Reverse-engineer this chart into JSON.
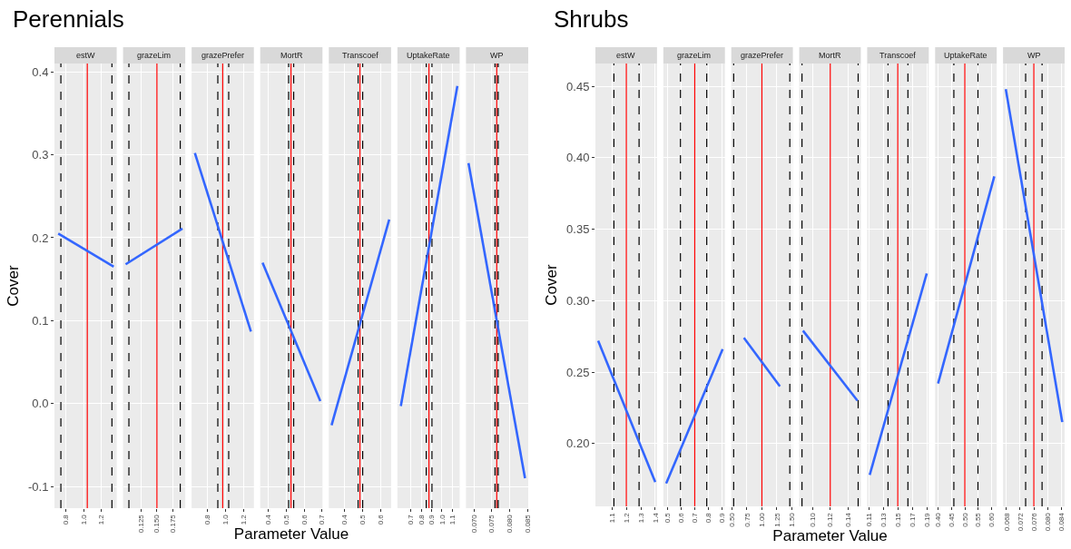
{
  "chart_data": [
    {
      "type": "line",
      "title": "estW",
      "annotations": [
        "Perennials"
      ],
      "ylabel": "Cover",
      "color": "#3366ff",
      "x": [
        0.71,
        1.34
      ],
      "values": [
        0.205,
        0.165
      ],
      "xlim": [
        0.667,
        1.374
      ],
      "xticks": [
        0.8,
        {
          "value": 1.0,
          "label": "1.0"
        },
        1.2
      ],
      "ylim": [
        -0.126,
        0.41
      ],
      "yticks": [
        -0.1,
        {
          "value": 0,
          "label": "0.0"
        },
        0.1,
        0.2,
        0.3,
        0.4
      ],
      "grid": true,
      "ref_lines": [
        {
          "axis": "x",
          "value": 1.04,
          "color": "#ff0000"
        },
        {
          "axis": "x",
          "value": 0.74,
          "color": "#000000",
          "line_style": "dashed"
        },
        {
          "axis": "x",
          "value": 1.32,
          "color": "#000000",
          "line_style": "dashed"
        }
      ]
    },
    {
      "type": "line",
      "title": "grazeLim",
      "color": "#3366ff",
      "x": [
        0.0998,
        0.191
      ],
      "values": [
        0.168,
        0.211
      ],
      "xlim": [
        0.0956,
        0.1956
      ],
      "xticks": [
        0.125,
        {
          "value": 0.15,
          "label": "0.150"
        },
        0.175
      ],
      "ylim": [
        -0.126,
        0.41
      ],
      "yticks": [
        -0.1,
        0,
        0.1,
        0.2,
        0.3,
        0.4
      ],
      "grid": true,
      "tick_labels": "x",
      "ref_lines": [
        {
          "axis": "x",
          "value": 0.15,
          "color": "#ff0000"
        },
        {
          "axis": "x",
          "value": 0.105,
          "color": "#000000",
          "line_style": "dashed"
        },
        {
          "axis": "x",
          "value": 0.1875,
          "color": "#000000",
          "line_style": "dashed"
        }
      ]
    },
    {
      "type": "line",
      "title": "grazePrefer",
      "color": "#3366ff",
      "x": [
        0.668,
        1.276
      ],
      "values": [
        0.302,
        0.087
      ],
      "xlim": [
        0.633,
        1.308
      ],
      "xticks": [
        0.8,
        {
          "value": 1.0,
          "label": "1.0"
        },
        1.2
      ],
      "ylim": [
        -0.126,
        0.41
      ],
      "yticks": [
        -0.1,
        0,
        0.1,
        0.2,
        0.3,
        0.4
      ],
      "grid": true,
      "tick_labels": "x",
      "ref_lines": [
        {
          "axis": "x",
          "value": 0.97,
          "color": "#ff0000"
        },
        {
          "axis": "x",
          "value": 0.917,
          "color": "#000000",
          "line_style": "dashed"
        },
        {
          "axis": "x",
          "value": 1.035,
          "color": "#000000",
          "line_style": "dashed"
        }
      ]
    },
    {
      "type": "line",
      "title": "MortR",
      "xlabel": "Parameter Value",
      "color": "#3366ff",
      "x": [
        0.367,
        0.69
      ],
      "values": [
        0.17,
        0.003
      ],
      "xlim": [
        0.354,
        0.702
      ],
      "xticks": [
        0.4,
        0.5,
        0.6,
        0.7
      ],
      "ylim": [
        -0.126,
        0.41
      ],
      "yticks": [
        -0.1,
        0,
        0.1,
        0.2,
        0.3,
        0.4
      ],
      "grid": true,
      "tick_labels": "x",
      "ref_lines": [
        {
          "axis": "x",
          "value": 0.526,
          "color": "#ff0000"
        },
        {
          "axis": "x",
          "value": 0.513,
          "color": "#000000",
          "line_style": "dashed"
        },
        {
          "axis": "x",
          "value": 0.541,
          "color": "#000000",
          "line_style": "dashed"
        }
      ]
    },
    {
      "type": "line",
      "title": "Transcoef",
      "color": "#3366ff",
      "x": [
        0.33,
        0.645
      ],
      "values": [
        -0.026,
        0.222
      ],
      "xlim": [
        0.315,
        0.655
      ],
      "xticks": [
        0.4,
        0.5,
        0.6
      ],
      "ylim": [
        -0.126,
        0.41
      ],
      "yticks": [
        -0.1,
        0,
        0.1,
        0.2,
        0.3,
        0.4
      ],
      "grid": true,
      "tick_labels": "x",
      "ref_lines": [
        {
          "axis": "x",
          "value": 0.485,
          "color": "#ff0000"
        },
        {
          "axis": "x",
          "value": 0.475,
          "color": "#000000",
          "line_style": "dashed"
        },
        {
          "axis": "x",
          "value": 0.5,
          "color": "#000000",
          "line_style": "dashed"
        }
      ]
    },
    {
      "type": "line",
      "title": "UptakeRate",
      "color": "#3366ff",
      "x": [
        0.603,
        1.148
      ],
      "values": [
        -0.003,
        0.383
      ],
      "xlim": [
        0.57,
        1.17
      ],
      "xticks": [
        0.7,
        0.8,
        0.9,
        {
          "value": 1.0,
          "label": "1.0"
        },
        1.1
      ],
      "ylim": [
        -0.126,
        0.41
      ],
      "yticks": [
        -0.1,
        0,
        0.1,
        0.2,
        0.3,
        0.4
      ],
      "grid": true,
      "tick_labels": "x",
      "ref_lines": [
        {
          "axis": "x",
          "value": 0.874,
          "color": "#ff0000"
        },
        {
          "axis": "x",
          "value": 0.848,
          "color": "#000000",
          "line_style": "dashed"
        },
        {
          "axis": "x",
          "value": 0.903,
          "color": "#000000",
          "line_style": "dashed"
        }
      ]
    },
    {
      "type": "line",
      "title": "WP",
      "color": "#3366ff",
      "x": [
        0.0685,
        0.0843
      ],
      "values": [
        0.29,
        -0.09
      ],
      "xlim": [
        0.0678,
        0.0852
      ],
      "xticks": [
        {
          "value": 0.07,
          "label": "0.070"
        },
        0.075,
        {
          "value": 0.08,
          "label": "0.080"
        },
        0.085
      ],
      "ylim": [
        -0.126,
        0.41
      ],
      "yticks": [
        -0.1,
        0,
        0.1,
        0.2,
        0.3,
        0.4
      ],
      "grid": true,
      "tick_labels": "x",
      "ref_lines": [
        {
          "axis": "x",
          "value": 0.0764,
          "color": "#ff0000"
        },
        {
          "axis": "x",
          "value": 0.0759,
          "color": "#000000",
          "line_style": "dashed"
        },
        {
          "axis": "x",
          "value": 0.0768,
          "color": "#000000",
          "line_style": "dashed"
        }
      ]
    },
    {
      "type": "line",
      "title": "estW",
      "annotations": [
        "Shrubs"
      ],
      "ylabel": "Cover",
      "color": "#3366ff",
      "x": [
        1.005,
        1.4
      ],
      "values": [
        0.272,
        0.173
      ],
      "xlim": [
        0.986,
        1.412
      ],
      "xticks": [
        1.1,
        1.2,
        1.3,
        1.4
      ],
      "ylim": [
        0.156,
        0.466
      ],
      "yticks": [
        {
          "value": 0.2,
          "label": "0.20"
        },
        0.25,
        {
          "value": 0.3,
          "label": "0.30"
        },
        0.35,
        {
          "value": 0.4,
          "label": "0.40"
        },
        0.45
      ],
      "grid": true,
      "ref_lines": [
        {
          "axis": "x",
          "value": 1.2,
          "color": "#ff0000"
        },
        {
          "axis": "x",
          "value": 1.114,
          "color": "#000000",
          "line_style": "dashed"
        },
        {
          "axis": "x",
          "value": 1.288,
          "color": "#000000",
          "line_style": "dashed"
        }
      ]
    },
    {
      "type": "line",
      "title": "grazeLim",
      "color": "#3366ff",
      "x": [
        0.488,
        0.907
      ],
      "values": [
        0.172,
        0.266
      ],
      "xlim": [
        0.467,
        0.924
      ],
      "xticks": [
        0.5,
        0.6,
        0.7,
        0.8,
        0.9
      ],
      "ylim": [
        0.156,
        0.466
      ],
      "yticks": [
        0.2,
        0.25,
        0.3,
        0.35,
        0.4,
        0.45
      ],
      "grid": true,
      "tick_labels": "x",
      "ref_lines": [
        {
          "axis": "x",
          "value": 0.7,
          "color": "#ff0000"
        },
        {
          "axis": "x",
          "value": 0.594,
          "color": "#000000",
          "line_style": "dashed"
        },
        {
          "axis": "x",
          "value": 0.789,
          "color": "#000000",
          "line_style": "dashed"
        }
      ]
    },
    {
      "type": "line",
      "title": "grazePrefer",
      "color": "#3366ff",
      "x": [
        0.7,
        1.3
      ],
      "values": [
        0.274,
        0.24
      ],
      "xlim": [
        0.49,
        1.516
      ],
      "xticks": [
        {
          "value": 0.5,
          "label": "0.50"
        },
        0.75,
        {
          "value": 1.0,
          "label": "1.00"
        },
        1.25,
        {
          "value": 1.5,
          "label": "1.50"
        }
      ],
      "ylim": [
        0.156,
        0.466
      ],
      "yticks": [
        0.2,
        0.25,
        0.3,
        0.35,
        0.4,
        0.45
      ],
      "grid": true,
      "tick_labels": "x",
      "ref_lines": [
        {
          "axis": "x",
          "value": 1.0,
          "color": "#ff0000"
        },
        {
          "axis": "x",
          "value": 0.53,
          "color": "#000000",
          "line_style": "dashed"
        },
        {
          "axis": "x",
          "value": 1.465,
          "color": "#000000",
          "line_style": "dashed"
        }
      ]
    },
    {
      "type": "line",
      "title": "MortR",
      "xlabel": "Parameter Value",
      "color": "#3366ff",
      "x": [
        0.0894,
        0.1505
      ],
      "values": [
        0.279,
        0.23
      ],
      "xlim": [
        0.0852,
        0.1543
      ],
      "xticks": [
        {
          "value": 0.1,
          "label": "0.10"
        },
        0.12,
        0.14
      ],
      "ylim": [
        0.156,
        0.466
      ],
      "yticks": [
        0.2,
        0.25,
        0.3,
        0.35,
        0.4,
        0.45
      ],
      "grid": true,
      "tick_labels": "x",
      "ref_lines": [
        {
          "axis": "x",
          "value": 0.12,
          "color": "#ff0000"
        },
        {
          "axis": "x",
          "value": 0.0883,
          "color": "#000000",
          "line_style": "dashed"
        },
        {
          "axis": "x",
          "value": 0.1513,
          "color": "#000000",
          "line_style": "dashed"
        }
      ]
    },
    {
      "type": "line",
      "title": "Transcoef",
      "color": "#3366ff",
      "x": [
        0.1112,
        0.19
      ],
      "values": [
        0.178,
        0.319
      ],
      "xlim": [
        0.1077,
        0.1928
      ],
      "xticks": [
        0.11,
        0.13,
        0.15,
        0.17,
        0.19
      ],
      "ylim": [
        0.156,
        0.466
      ],
      "yticks": [
        0.2,
        0.25,
        0.3,
        0.35,
        0.4,
        0.45
      ],
      "grid": true,
      "tick_labels": "x",
      "ref_lines": [
        {
          "axis": "x",
          "value": 0.15,
          "color": "#ff0000"
        },
        {
          "axis": "x",
          "value": 0.1365,
          "color": "#000000",
          "line_style": "dashed"
        },
        {
          "axis": "x",
          "value": 0.164,
          "color": "#000000",
          "line_style": "dashed"
        }
      ]
    },
    {
      "type": "line",
      "title": "UptakeRate",
      "color": "#3366ff",
      "x": [
        0.4,
        0.61
      ],
      "values": [
        0.242,
        0.387
      ],
      "xlim": [
        0.389,
        0.619
      ],
      "xticks": [
        {
          "value": 0.4,
          "label": "0.40"
        },
        0.45,
        {
          "value": 0.5,
          "label": "0.50"
        },
        0.55,
        {
          "value": 0.6,
          "label": "0.60"
        }
      ],
      "ylim": [
        0.156,
        0.466
      ],
      "yticks": [
        0.2,
        0.25,
        0.3,
        0.35,
        0.4,
        0.45
      ],
      "grid": true,
      "tick_labels": "x",
      "ref_lines": [
        {
          "axis": "x",
          "value": 0.5,
          "color": "#ff0000"
        },
        {
          "axis": "x",
          "value": 0.459,
          "color": "#000000",
          "line_style": "dashed"
        },
        {
          "axis": "x",
          "value": 0.549,
          "color": "#000000",
          "line_style": "dashed"
        }
      ]
    },
    {
      "type": "line",
      "title": "WP",
      "color": "#3366ff",
      "x": [
        0.0678,
        0.0843
      ],
      "values": [
        0.448,
        0.215
      ],
      "xlim": [
        0.067,
        0.085
      ],
      "xticks": [
        0.068,
        0.072,
        0.076,
        {
          "value": 0.08,
          "label": "0.080"
        },
        0.084
      ],
      "ylim": [
        0.156,
        0.466
      ],
      "yticks": [
        0.2,
        0.25,
        0.3,
        0.35,
        0.4,
        0.45
      ],
      "grid": true,
      "tick_labels": "x",
      "ref_lines": [
        {
          "axis": "x",
          "value": 0.076,
          "color": "#ff0000"
        },
        {
          "axis": "x",
          "value": 0.0736,
          "color": "#000000",
          "line_style": "dashed"
        },
        {
          "axis": "x",
          "value": 0.0784,
          "color": "#000000",
          "line_style": "dashed"
        }
      ]
    }
  ]
}
